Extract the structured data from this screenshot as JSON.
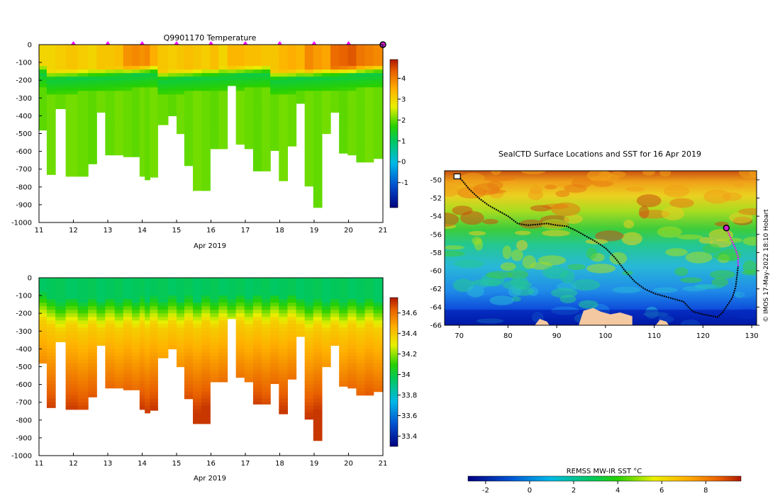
{
  "page": {
    "credit": "© IMOS 17-May-2022 18:10 Hobart"
  },
  "chart_data": [
    {
      "type": "heatmap",
      "title": "Q9901170  Temperature",
      "xlabel": "Apr 2019",
      "ylabel": "",
      "x_ticks": [
        "11",
        "12",
        "13",
        "14",
        "15",
        "16",
        "17",
        "18",
        "19",
        "20",
        "21"
      ],
      "y_ticks": [
        "0",
        "-100",
        "-200",
        "-300",
        "-400",
        "-500",
        "-600",
        "-700",
        "-800",
        "-900",
        "-1000"
      ],
      "xlim": [
        11,
        21
      ],
      "ylim": [
        -1000,
        0
      ],
      "colorbar": {
        "ticks": [
          "4",
          "3",
          "2",
          "1",
          "0",
          "-1"
        ],
        "range": [
          -2.2,
          4.9
        ]
      },
      "marker_days": [
        12,
        13,
        14,
        15,
        16,
        17,
        18,
        19,
        20
      ],
      "current_day": 21,
      "profiles": [
        {
          "t": 11.1,
          "depth": 480,
          "surf": 3.0
        },
        {
          "t": 11.35,
          "depth": 730,
          "surf": 3.0
        },
        {
          "t": 11.6,
          "depth": 360,
          "surf": 3.1
        },
        {
          "t": 11.95,
          "depth": 740,
          "surf": 3.2
        },
        {
          "t": 12.3,
          "depth": 740,
          "surf": 3.1
        },
        {
          "t": 12.55,
          "depth": 670,
          "surf": 3.0
        },
        {
          "t": 12.8,
          "depth": 380,
          "surf": 3.2
        },
        {
          "t": 13.05,
          "depth": 620,
          "surf": 3.2
        },
        {
          "t": 13.35,
          "depth": 620,
          "surf": 3.3
        },
        {
          "t": 13.55,
          "depth": 630,
          "surf": 3.8
        },
        {
          "t": 13.85,
          "depth": 630,
          "surf": 3.9
        },
        {
          "t": 14.0,
          "depth": 740,
          "surf": 3.8
        },
        {
          "t": 14.15,
          "depth": 760,
          "surf": 3.9
        },
        {
          "t": 14.3,
          "depth": 745,
          "surf": 3.5
        },
        {
          "t": 14.6,
          "depth": 450,
          "surf": 3.2
        },
        {
          "t": 14.9,
          "depth": 400,
          "surf": 3.1
        },
        {
          "t": 15.1,
          "depth": 500,
          "surf": 3.2
        },
        {
          "t": 15.35,
          "depth": 680,
          "surf": 3.3
        },
        {
          "t": 15.6,
          "depth": 820,
          "surf": 3.2
        },
        {
          "t": 15.85,
          "depth": 820,
          "surf": 3.1
        },
        {
          "t": 16.1,
          "depth": 585,
          "surf": 3.3
        },
        {
          "t": 16.35,
          "depth": 585,
          "surf": 3.0
        },
        {
          "t": 16.6,
          "depth": 230,
          "surf": 3.4
        },
        {
          "t": 16.85,
          "depth": 560,
          "surf": 3.4
        },
        {
          "t": 17.1,
          "depth": 585,
          "surf": 3.3
        },
        {
          "t": 17.35,
          "depth": 710,
          "surf": 3.3
        },
        {
          "t": 17.6,
          "depth": 710,
          "surf": 3.2
        },
        {
          "t": 17.85,
          "depth": 595,
          "surf": 3.2
        },
        {
          "t": 18.1,
          "depth": 765,
          "surf": 3.4
        },
        {
          "t": 18.35,
          "depth": 570,
          "surf": 3.5
        },
        {
          "t": 18.6,
          "depth": 330,
          "surf": 3.4
        },
        {
          "t": 18.85,
          "depth": 795,
          "surf": 3.9
        },
        {
          "t": 19.1,
          "depth": 915,
          "surf": 3.7
        },
        {
          "t": 19.35,
          "depth": 500,
          "surf": 3.6
        },
        {
          "t": 19.6,
          "depth": 380,
          "surf": 4.2
        },
        {
          "t": 19.85,
          "depth": 610,
          "surf": 4.3
        },
        {
          "t": 20.1,
          "depth": 620,
          "surf": 4.4
        },
        {
          "t": 20.35,
          "depth": 660,
          "surf": 4.1
        },
        {
          "t": 20.6,
          "depth": 660,
          "surf": 4.0
        },
        {
          "t": 20.85,
          "depth": 640,
          "surf": 3.9
        }
      ]
    },
    {
      "type": "heatmap",
      "title": "",
      "xlabel": "Apr 2019",
      "ylabel": "",
      "x_ticks": [
        "11",
        "12",
        "13",
        "14",
        "15",
        "16",
        "17",
        "18",
        "19",
        "20",
        "21"
      ],
      "y_ticks": [
        "0",
        "-100",
        "-200",
        "-300",
        "-400",
        "-500",
        "-600",
        "-700",
        "-800",
        "-900",
        "-1000"
      ],
      "xlim": [
        11,
        21
      ],
      "ylim": [
        -1000,
        0
      ],
      "colorbar": {
        "ticks": [
          "34.6",
          "34.4",
          "34.2",
          "34",
          "33.8",
          "33.6",
          "33.4"
        ],
        "range": [
          33.3,
          34.75
        ]
      },
      "surface_value": 33.95,
      "deep_value": 34.7
    },
    {
      "type": "map",
      "title": "SealCTD Surface Locations and SST for 16 Apr 2019",
      "x_ticks": [
        "70",
        "80",
        "90",
        "100",
        "110",
        "120",
        "130"
      ],
      "y_ticks": [
        "-50",
        "-52",
        "-54",
        "-56",
        "-58",
        "-60",
        "-62",
        "-64",
        "-66"
      ],
      "xlim": [
        67,
        131
      ],
      "ylim": [
        -66,
        -49
      ],
      "colorbar": {
        "label": "REMSS MW-IR SST °C",
        "ticks": [
          "-2",
          "0",
          "2",
          "4",
          "6",
          "8"
        ],
        "range": [
          -2.8,
          9.6
        ]
      },
      "track": [
        [
          69.5,
          -49.5
        ],
        [
          70.5,
          -50
        ],
        [
          72,
          -51
        ],
        [
          74,
          -52
        ],
        [
          76,
          -52.8
        ],
        [
          78,
          -53.4
        ],
        [
          80,
          -54
        ],
        [
          82,
          -54.8
        ],
        [
          84,
          -55
        ],
        [
          86,
          -54.9
        ],
        [
          88,
          -54.8
        ],
        [
          90,
          -55
        ],
        [
          92,
          -55.1
        ],
        [
          94,
          -55.6
        ],
        [
          96,
          -56.2
        ],
        [
          98,
          -56.8
        ],
        [
          100,
          -57.5
        ],
        [
          102,
          -58.6
        ],
        [
          104,
          -60
        ],
        [
          106,
          -61.2
        ],
        [
          108,
          -62
        ],
        [
          110,
          -62.5
        ],
        [
          112,
          -62.8
        ],
        [
          114,
          -63.1
        ],
        [
          116,
          -63.4
        ],
        [
          117,
          -64
        ],
        [
          118,
          -64.5
        ],
        [
          120,
          -64.8
        ],
        [
          122,
          -65
        ],
        [
          123,
          -65.1
        ],
        [
          124,
          -64.6
        ],
        [
          125,
          -63.8
        ],
        [
          126,
          -63
        ],
        [
          126.7,
          -61.8
        ],
        [
          127,
          -60.5
        ],
        [
          127.2,
          -59.5
        ]
      ],
      "recent_track": [
        [
          127.2,
          -59.5
        ],
        [
          127.2,
          -58.5
        ],
        [
          126.6,
          -57.5
        ],
        [
          126,
          -56.8
        ],
        [
          125.2,
          -55.8
        ],
        [
          124.8,
          -55.3
        ]
      ],
      "current_position": [
        124.8,
        -55.3
      ],
      "ice_patches": [
        [
          [
            94.5,
            -66
          ],
          [
            95.5,
            -64.4
          ],
          [
            97.5,
            -64.1
          ],
          [
            99,
            -64.5
          ],
          [
            101,
            -64.8
          ],
          [
            103,
            -64.6
          ],
          [
            105.5,
            -65
          ],
          [
            105.5,
            -66
          ]
        ],
        [
          [
            85.5,
            -66
          ],
          [
            86.5,
            -65.3
          ],
          [
            88,
            -65.6
          ],
          [
            88.5,
            -66
          ]
        ],
        [
          [
            110.3,
            -66
          ],
          [
            111.2,
            -65.4
          ],
          [
            112.5,
            -65.6
          ],
          [
            113,
            -66
          ]
        ]
      ]
    }
  ]
}
